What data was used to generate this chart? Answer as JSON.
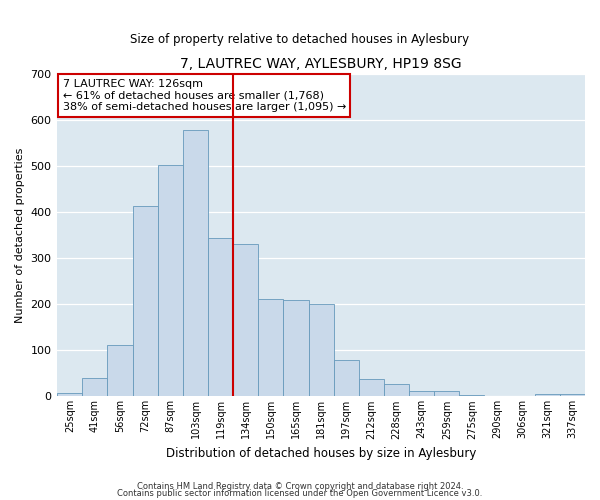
{
  "title": "7, LAUTREC WAY, AYLESBURY, HP19 8SG",
  "subtitle": "Size of property relative to detached houses in Aylesbury",
  "xlabel": "Distribution of detached houses by size in Aylesbury",
  "ylabel": "Number of detached properties",
  "bar_color": "#c9d9ea",
  "bar_edge_color": "#6699bb",
  "plot_bg_color": "#dce8f0",
  "fig_bg_color": "#ffffff",
  "grid_color": "#ffffff",
  "categories": [
    "25sqm",
    "41sqm",
    "56sqm",
    "72sqm",
    "87sqm",
    "103sqm",
    "119sqm",
    "134sqm",
    "150sqm",
    "165sqm",
    "181sqm",
    "197sqm",
    "212sqm",
    "228sqm",
    "243sqm",
    "259sqm",
    "275sqm",
    "290sqm",
    "306sqm",
    "321sqm",
    "337sqm"
  ],
  "values": [
    8,
    40,
    112,
    413,
    503,
    578,
    345,
    330,
    212,
    210,
    200,
    80,
    38,
    26,
    12,
    12,
    2,
    0,
    0,
    5,
    5
  ],
  "vline_x": 6.5,
  "vline_color": "#cc0000",
  "annotation_title": "7 LAUTREC WAY: 126sqm",
  "annotation_line1": "← 61% of detached houses are smaller (1,768)",
  "annotation_line2": "38% of semi-detached houses are larger (1,095) →",
  "annotation_box_color": "#ffffff",
  "annotation_box_edge_color": "#cc0000",
  "ylim": [
    0,
    700
  ],
  "yticks": [
    0,
    100,
    200,
    300,
    400,
    500,
    600,
    700
  ],
  "footnote1": "Contains HM Land Registry data © Crown copyright and database right 2024.",
  "footnote2": "Contains public sector information licensed under the Open Government Licence v3.0."
}
